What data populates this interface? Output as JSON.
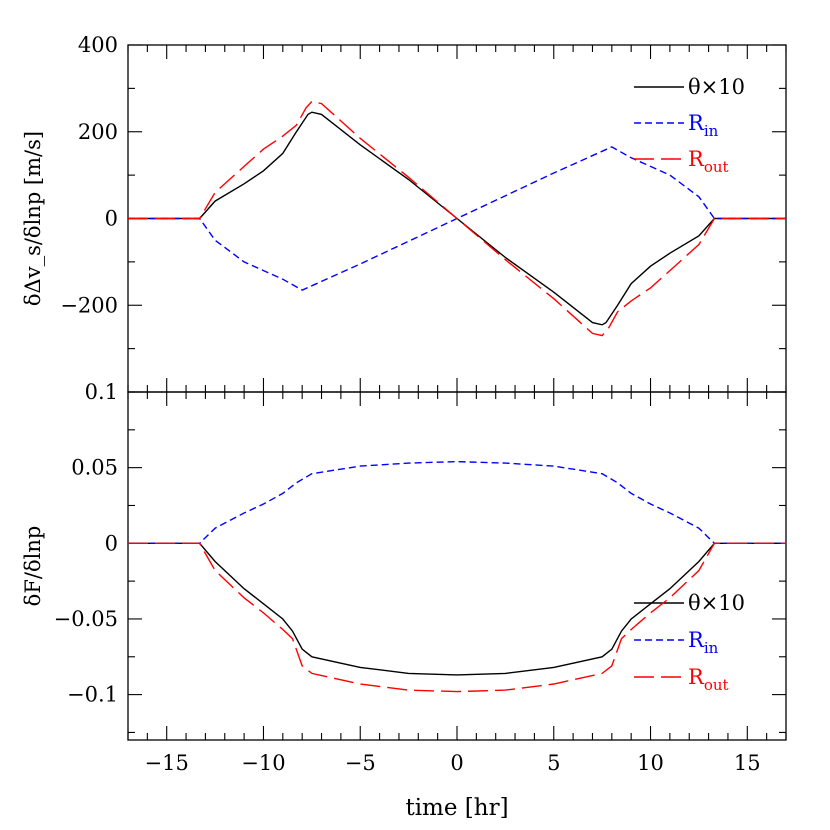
{
  "chart_data": [
    {
      "type": "line",
      "ylabel": "δΔv_s/δlnp [m/s]",
      "xlim": [
        -17,
        17
      ],
      "ylim": [
        -400,
        400
      ],
      "yticks": [
        "400",
        "200",
        "0",
        "−200"
      ],
      "legend_position": "top-right",
      "series": [
        {
          "name": "θ×10",
          "color": "#000000",
          "style": "solid",
          "x": [
            -17,
            -13.3,
            -12.5,
            -11,
            -10,
            -9,
            -8.3,
            -7.7,
            -7.5,
            -7,
            -5,
            -2.5,
            0,
            2.5,
            5,
            7,
            7.5,
            7.7,
            8.3,
            9,
            10,
            11,
            12.5,
            13.3,
            17
          ],
          "y": [
            0,
            0,
            40,
            80,
            110,
            150,
            200,
            240,
            245,
            240,
            170,
            90,
            0,
            -90,
            -170,
            -240,
            -245,
            -240,
            -200,
            -150,
            -110,
            -80,
            -40,
            0,
            0
          ]
        },
        {
          "name": "R_in",
          "color": "#0000ff",
          "style": "short-dash",
          "x": [
            -17,
            -13.3,
            -12.5,
            -11,
            -9,
            -8,
            -5,
            0,
            5,
            8,
            9,
            11,
            12.5,
            13.3,
            17
          ],
          "y": [
            0,
            0,
            -50,
            -100,
            -140,
            -165,
            -105,
            0,
            105,
            165,
            140,
            100,
            50,
            0,
            0
          ]
        },
        {
          "name": "R_out",
          "color": "#ff0000",
          "style": "long-dash",
          "x": [
            -17,
            -13.3,
            -12.5,
            -11,
            -10,
            -9,
            -8.3,
            -7.8,
            -7.5,
            -7,
            -5,
            -2.5,
            0,
            2.5,
            5,
            7,
            7.5,
            7.8,
            8.3,
            9,
            10,
            11,
            12.5,
            13.3,
            17
          ],
          "y": [
            0,
            0,
            60,
            120,
            160,
            190,
            215,
            255,
            270,
            265,
            185,
            95,
            0,
            -95,
            -185,
            -265,
            -270,
            -255,
            -215,
            -190,
            -160,
            -120,
            -60,
            0,
            0
          ]
        }
      ]
    },
    {
      "type": "line",
      "xlabel": "time [hr]",
      "ylabel": "δF/δlnp",
      "xlim": [
        -17,
        17
      ],
      "ylim": [
        -0.13,
        0.1
      ],
      "xticks": [
        "−15",
        "−10",
        "−5",
        "0",
        "5",
        "10",
        "15"
      ],
      "yticks": [
        "0.1",
        "0.05",
        "0",
        "−0.05",
        "−0.1"
      ],
      "legend_position": "right",
      "series": [
        {
          "name": "θ×10",
          "color": "#000000",
          "style": "solid",
          "x": [
            -17,
            -13.3,
            -12.5,
            -11,
            -10,
            -9,
            -8.5,
            -8,
            -7.5,
            -5,
            -2.5,
            0,
            2.5,
            5,
            7.5,
            8,
            8.5,
            9,
            10,
            11,
            12.5,
            13.3,
            17
          ],
          "y": [
            0,
            0,
            -0.012,
            -0.03,
            -0.04,
            -0.05,
            -0.058,
            -0.07,
            -0.075,
            -0.082,
            -0.086,
            -0.087,
            -0.086,
            -0.082,
            -0.075,
            -0.07,
            -0.058,
            -0.05,
            -0.04,
            -0.03,
            -0.012,
            0,
            0
          ]
        },
        {
          "name": "R_in",
          "color": "#0000ff",
          "style": "short-dash",
          "x": [
            -17,
            -13.3,
            -12.5,
            -11,
            -10,
            -9,
            -8.3,
            -7.5,
            -5,
            -2.5,
            0,
            2.5,
            5,
            7.5,
            8.3,
            9,
            10,
            11,
            12.5,
            13.3,
            17
          ],
          "y": [
            0,
            0,
            0.01,
            0.02,
            0.026,
            0.033,
            0.04,
            0.046,
            0.051,
            0.053,
            0.054,
            0.053,
            0.051,
            0.046,
            0.04,
            0.033,
            0.026,
            0.02,
            0.01,
            0,
            0
          ]
        },
        {
          "name": "R_out",
          "color": "#ff0000",
          "style": "long-dash",
          "x": [
            -17,
            -13.3,
            -12.5,
            -11,
            -10,
            -9,
            -8.5,
            -8,
            -7.5,
            -5,
            -2.5,
            0,
            2.5,
            5,
            7.5,
            8,
            8.5,
            9,
            10,
            11,
            12.5,
            13.3,
            17
          ],
          "y": [
            0,
            0,
            -0.018,
            -0.036,
            -0.046,
            -0.057,
            -0.063,
            -0.081,
            -0.086,
            -0.093,
            -0.097,
            -0.098,
            -0.097,
            -0.093,
            -0.086,
            -0.081,
            -0.063,
            -0.057,
            -0.046,
            -0.036,
            -0.018,
            0,
            0
          ]
        }
      ]
    }
  ]
}
